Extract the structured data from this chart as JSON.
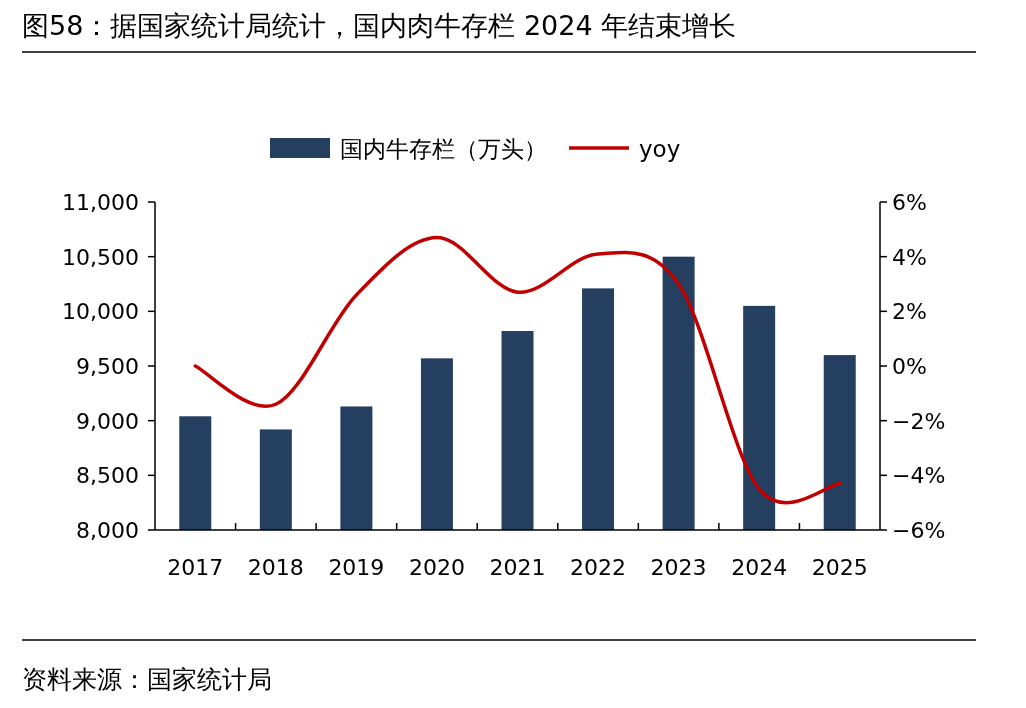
{
  "chart_data": {
    "type": "bar",
    "title": "图58：据国家统计局统计，国内肉牛存栏 2024 年结束增长",
    "annotations": [
      "资料来源：国家统计局"
    ],
    "categories": [
      "2017",
      "2018",
      "2019",
      "2020",
      "2021",
      "2022",
      "2023",
      "2024",
      "2025"
    ],
    "series": [
      {
        "name": "国内牛存栏（万头）",
        "color": "#243f60",
        "values": [
          9040,
          8920,
          9130,
          9570,
          9820,
          10210,
          10500,
          10050,
          9600
        ]
      },
      {
        "name": "yoy",
        "type": "line",
        "axis": "y2",
        "color": "#c00000",
        "values": [
          0.0,
          -1.4,
          2.6,
          4.7,
          2.7,
          4.1,
          3.0,
          -4.5,
          -4.3
        ]
      }
    ],
    "ylim": [
      8000,
      11000
    ],
    "yticks": [
      {
        "value": 8000,
        "label": "8,000"
      },
      {
        "value": 8500,
        "label": "8,500"
      },
      {
        "value": 9000,
        "label": "9,000"
      },
      {
        "value": 9500,
        "label": "9,500"
      },
      {
        "value": 10000,
        "label": "10,000"
      },
      {
        "value": 10500,
        "label": "10,500"
      },
      {
        "value": 11000,
        "label": "11,000"
      }
    ],
    "y2lim": [
      -6,
      6
    ],
    "y2ticks": [
      {
        "value": -6,
        "label": "−6%"
      },
      {
        "value": -4,
        "label": "−4%"
      },
      {
        "value": -2,
        "label": "−2%"
      },
      {
        "value": 0,
        "label": "0%"
      },
      {
        "value": 2,
        "label": "2%"
      },
      {
        "value": 4,
        "label": "4%"
      },
      {
        "value": 6,
        "label": "6%"
      }
    ],
    "legend": "top",
    "grid": false
  }
}
